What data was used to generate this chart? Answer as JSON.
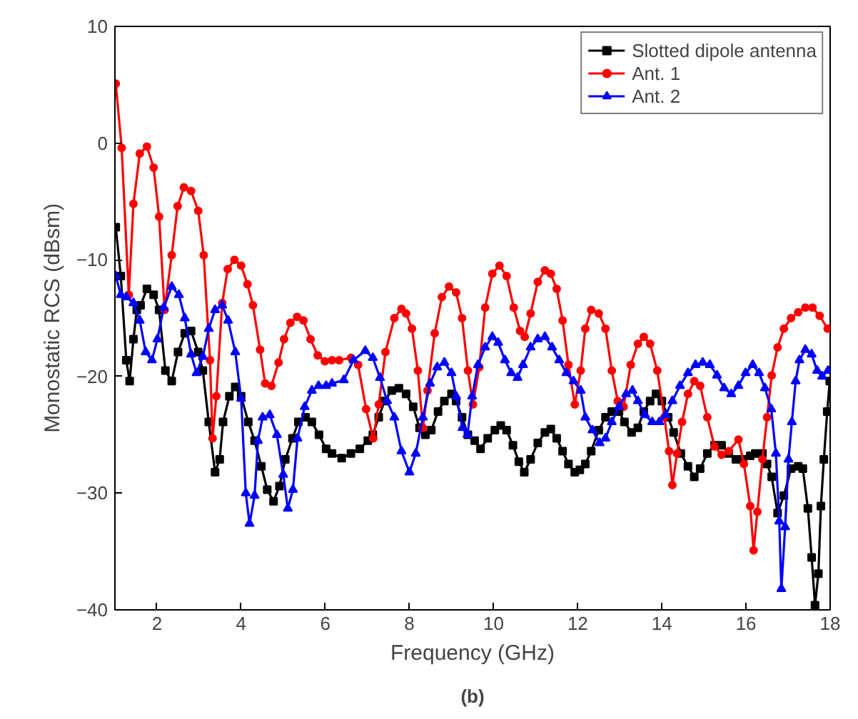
{
  "chart_data": {
    "type": "line",
    "xlabel": "Frequency (GHz)",
    "ylabel": "Monostatic RCS (dBsm)",
    "annotations": [
      "(b)"
    ],
    "xlim": [
      1,
      18
    ],
    "xticks": [
      2,
      4,
      6,
      8,
      10,
      12,
      14,
      16,
      18
    ],
    "ylim": [
      -40,
      10
    ],
    "yticks": [
      -40,
      -30,
      -20,
      -10,
      0,
      10
    ],
    "grid": false,
    "legend": "top right",
    "line_style": "solid",
    "series": [
      {
        "name": "Slotted dipole antenna",
        "color": "#000000",
        "marker": "square",
        "x": [
          1.02,
          1.14,
          1.27,
          1.35,
          1.44,
          1.52,
          1.61,
          1.76,
          1.92,
          2.05,
          2.2,
          2.35,
          2.5,
          2.66,
          2.81,
          2.98,
          3.09,
          3.23,
          3.38,
          3.49,
          3.57,
          3.72,
          3.86,
          4.0,
          4.17,
          4.32,
          4.48,
          4.62,
          4.77,
          4.91,
          5.05,
          5.22,
          5.36,
          5.53,
          5.68,
          5.85,
          6.02,
          6.16,
          6.39,
          6.61,
          6.82,
          7.01,
          7.13,
          7.27,
          7.41,
          7.58,
          7.75,
          7.92,
          8.09,
          8.24,
          8.38,
          8.52,
          8.68,
          8.83,
          9.0,
          9.11,
          9.25,
          9.39,
          9.55,
          9.69,
          9.86,
          10.03,
          10.17,
          10.31,
          10.46,
          10.6,
          10.73,
          10.88,
          11.05,
          11.22,
          11.36,
          11.5,
          11.64,
          11.78,
          11.93,
          12.05,
          12.18,
          12.32,
          12.5,
          12.66,
          12.81,
          12.98,
          13.11,
          13.28,
          13.43,
          13.57,
          13.72,
          13.86,
          14.0,
          14.15,
          14.28,
          14.45,
          14.62,
          14.77,
          14.91,
          15.08,
          15.25,
          15.42,
          15.59,
          15.76,
          15.93,
          16.1,
          16.22,
          16.39,
          16.5,
          16.61,
          16.75,
          16.9,
          17.07,
          17.24,
          17.35,
          17.47,
          17.56,
          17.64,
          17.72,
          17.78,
          17.85,
          17.93,
          17.99
        ],
        "values": [
          -7.2,
          -11.4,
          -18.6,
          -20.4,
          -16.8,
          -14.3,
          -13.9,
          -12.5,
          -13,
          -14.3,
          -19.5,
          -20.4,
          -17.9,
          -16.3,
          -16.1,
          -17.9,
          -19.5,
          -23.9,
          -28.2,
          -27.1,
          -23.9,
          -21.7,
          -20.9,
          -21.7,
          -23.9,
          -25.5,
          -27.7,
          -29.7,
          -30.7,
          -29.4,
          -27.1,
          -25.3,
          -23.9,
          -23.5,
          -23.9,
          -25,
          -26.2,
          -26.6,
          -27,
          -26.6,
          -26.2,
          -25.5,
          -25,
          -23.5,
          -22.1,
          -21.2,
          -21,
          -21.5,
          -22.6,
          -24.4,
          -25,
          -24.6,
          -23,
          -22.1,
          -21.5,
          -22.1,
          -23.5,
          -25,
          -25.5,
          -26.2,
          -25.3,
          -24.6,
          -24.2,
          -24.6,
          -25.9,
          -27.3,
          -28.2,
          -27.1,
          -25.7,
          -24.8,
          -24.5,
          -25.3,
          -26.4,
          -27.5,
          -28.2,
          -28,
          -27.5,
          -26.4,
          -24.6,
          -23.5,
          -23,
          -23,
          -23.9,
          -24.8,
          -24.4,
          -23,
          -22.1,
          -21.5,
          -22.1,
          -23.5,
          -24.8,
          -26.6,
          -27.7,
          -28.6,
          -27.9,
          -26.6,
          -25.9,
          -25.9,
          -26.6,
          -27.1,
          -27.1,
          -26.8,
          -26.6,
          -26.6,
          -27.5,
          -28.6,
          -31.7,
          -30.2,
          -27.9,
          -27.7,
          -27.9,
          -31.3,
          -35.5,
          -39.6,
          -36.9,
          -31.1,
          -27.1,
          -23,
          -20.4
        ]
      },
      {
        "name": "Ant. 1",
        "color": "#ff0000",
        "marker": "circle",
        "x": [
          1.02,
          1.16,
          1.33,
          1.44,
          1.59,
          1.76,
          1.92,
          2.05,
          2.18,
          2.35,
          2.49,
          2.64,
          2.81,
          2.98,
          3.11,
          3.26,
          3.32,
          3.41,
          3.55,
          3.68,
          3.84,
          4.0,
          4.15,
          4.28,
          4.45,
          4.57,
          4.72,
          4.89,
          5.02,
          5.17,
          5.33,
          5.48,
          5.65,
          5.82,
          5.99,
          6.16,
          6.33,
          6.61,
          6.78,
          6.97,
          7.14,
          7.27,
          7.43,
          7.64,
          7.81,
          7.92,
          8.06,
          8.2,
          8.32,
          8.43,
          8.6,
          8.77,
          8.94,
          9.11,
          9.25,
          9.39,
          9.51,
          9.66,
          9.8,
          9.97,
          10.14,
          10.31,
          10.48,
          10.63,
          10.74,
          10.88,
          11.05,
          11.22,
          11.36,
          11.5,
          11.64,
          11.78,
          11.93,
          12.07,
          12.18,
          12.32,
          12.5,
          12.66,
          12.81,
          12.95,
          13.09,
          13.26,
          13.43,
          13.57,
          13.72,
          13.89,
          14.06,
          14.17,
          14.25,
          14.36,
          14.48,
          14.62,
          14.77,
          14.91,
          15.08,
          15.25,
          15.42,
          15.59,
          15.82,
          15.95,
          16.1,
          16.18,
          16.27,
          16.39,
          16.5,
          16.61,
          16.75,
          16.9,
          17.07,
          17.24,
          17.41,
          17.58,
          17.75,
          17.94
        ],
        "values": [
          5.1,
          -0.4,
          -13,
          -5.2,
          -0.9,
          -0.3,
          -2.1,
          -6.3,
          -14.3,
          -9.6,
          -5.4,
          -3.8,
          -4.1,
          -5.8,
          -9.6,
          -18.6,
          -25.3,
          -21.7,
          -13.7,
          -10.8,
          -10,
          -10.5,
          -12.1,
          -13.9,
          -17.7,
          -20.6,
          -20.8,
          -18.8,
          -16.8,
          -15.4,
          -14.9,
          -15.2,
          -16.8,
          -18.2,
          -18.7,
          -18.6,
          -18.6,
          -18.4,
          -19,
          -22.8,
          -25.3,
          -22.4,
          -17.9,
          -15,
          -14.2,
          -14.6,
          -15.9,
          -19.5,
          -24.4,
          -21.2,
          -16.3,
          -13.2,
          -12.3,
          -12.8,
          -15,
          -19.5,
          -22.4,
          -19.2,
          -14.1,
          -11.2,
          -10.5,
          -11.4,
          -14.1,
          -16.1,
          -16.6,
          -14.6,
          -11.9,
          -10.9,
          -11.2,
          -12.5,
          -15.2,
          -19,
          -22.4,
          -19.5,
          -15.9,
          -14.3,
          -14.6,
          -15.9,
          -19.5,
          -22.1,
          -22.6,
          -19,
          -17.2,
          -16.6,
          -17.2,
          -19.5,
          -23.5,
          -26.4,
          -29.3,
          -26.6,
          -23.9,
          -21.5,
          -20.4,
          -20.8,
          -23.5,
          -26,
          -26.7,
          -26.4,
          -25.4,
          -27.5,
          -31.1,
          -34.9,
          -31.6,
          -27.1,
          -23.5,
          -19.9,
          -17.5,
          -15.9,
          -15,
          -14.5,
          -14.1,
          -14.1,
          -14.8,
          -15.9
        ]
      },
      {
        "name": "Ant. 2",
        "color": "#0000ff",
        "marker": "triangle",
        "x": [
          1.02,
          1.14,
          1.27,
          1.44,
          1.59,
          1.73,
          1.88,
          2.01,
          2.16,
          2.35,
          2.52,
          2.66,
          2.81,
          2.94,
          3.09,
          3.23,
          3.38,
          3.55,
          3.69,
          3.86,
          4.0,
          4.11,
          4.2,
          4.32,
          4.4,
          4.51,
          4.68,
          4.85,
          5.0,
          5.11,
          5.23,
          5.34,
          5.51,
          5.68,
          5.84,
          6.02,
          6.16,
          6.44,
          6.67,
          6.95,
          7.13,
          7.3,
          7.47,
          7.64,
          7.81,
          8.0,
          8.15,
          8.32,
          8.49,
          8.66,
          8.83,
          9.0,
          9.11,
          9.26,
          9.38,
          9.49,
          9.63,
          9.8,
          9.97,
          10.11,
          10.27,
          10.42,
          10.57,
          10.7,
          10.88,
          11.05,
          11.22,
          11.39,
          11.56,
          11.73,
          11.9,
          12.07,
          12.18,
          12.35,
          12.52,
          12.66,
          12.81,
          12.98,
          13.15,
          13.3,
          13.43,
          13.6,
          13.77,
          13.94,
          14.09,
          14.25,
          14.43,
          14.62,
          14.8,
          14.97,
          15.14,
          15.31,
          15.48,
          15.65,
          15.82,
          15.99,
          16.16,
          16.31,
          16.45,
          16.6,
          16.71,
          16.79,
          16.84,
          16.93,
          17.01,
          17.09,
          17.18,
          17.27,
          17.41,
          17.56,
          17.69,
          17.81,
          17.95
        ],
        "values": [
          -11.4,
          -13,
          -13.2,
          -13.7,
          -15.2,
          -17.9,
          -18.6,
          -16.8,
          -14.1,
          -12.3,
          -13,
          -15,
          -18.1,
          -19.7,
          -18.3,
          -15.9,
          -14.3,
          -13.9,
          -15.2,
          -17.9,
          -21.9,
          -30,
          -32.6,
          -30.2,
          -25.5,
          -23.5,
          -23.3,
          -25,
          -28.4,
          -31.3,
          -29.7,
          -25.3,
          -22.6,
          -21.2,
          -20.8,
          -20.8,
          -20.6,
          -20.3,
          -18.6,
          -17.8,
          -18.4,
          -20.1,
          -22.1,
          -23.5,
          -26.4,
          -28.2,
          -26.6,
          -23.5,
          -20.6,
          -19.2,
          -18.8,
          -19.7,
          -21.7,
          -24.4,
          -25,
          -21.7,
          -19,
          -17.5,
          -16.6,
          -17.1,
          -18.6,
          -19.7,
          -20.1,
          -19,
          -17.5,
          -16.8,
          -16.6,
          -17.5,
          -18.6,
          -19.7,
          -20.4,
          -21.2,
          -23.5,
          -24.6,
          -25.7,
          -25.3,
          -23.9,
          -22.6,
          -21.5,
          -21.2,
          -22.1,
          -23.3,
          -23.9,
          -23.9,
          -23.3,
          -22.1,
          -20.8,
          -19.7,
          -19,
          -18.8,
          -19,
          -19.9,
          -21,
          -21.5,
          -20.8,
          -19.7,
          -19,
          -19.7,
          -21,
          -22.8,
          -26.6,
          -32.4,
          -38.2,
          -32.9,
          -27.1,
          -23.9,
          -20.4,
          -18.6,
          -17.7,
          -18.1,
          -19.5,
          -20,
          -19.5
        ]
      }
    ]
  }
}
